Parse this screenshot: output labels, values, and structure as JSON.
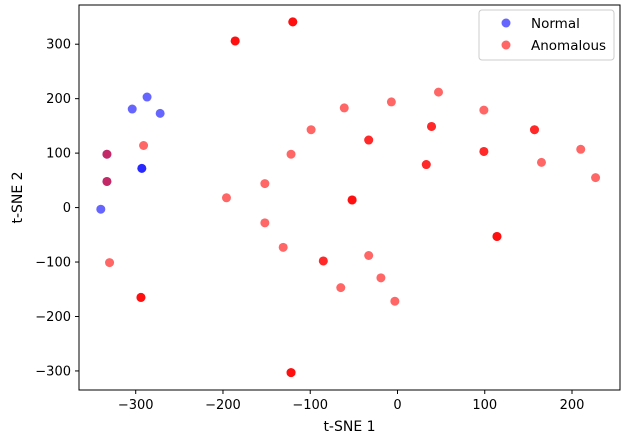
{
  "chart_data": {
    "type": "scatter",
    "xlabel": "t-SNE 1",
    "ylabel": "t-SNE 2",
    "xlim": [
      -365,
      255
    ],
    "ylim": [
      -335,
      372
    ],
    "xticks": [
      -300,
      -200,
      -100,
      0,
      100,
      200
    ],
    "yticks": [
      -300,
      -200,
      -100,
      0,
      100,
      200,
      300
    ],
    "xtick_labels": [
      "−300",
      "−200",
      "−100",
      "0",
      "100",
      "200"
    ],
    "ytick_labels": [
      "−300",
      "−200",
      "−100",
      "0",
      "100",
      "200",
      "300"
    ],
    "grid": false,
    "legend_position": "top-right",
    "series": [
      {
        "name": "Normal",
        "color": "#0000ff",
        "alpha": 0.6,
        "points": [
          [
            -340,
            -3
          ],
          [
            -333,
            48
          ],
          [
            -333,
            98
          ],
          [
            -304,
            181
          ],
          [
            -287,
            203
          ],
          [
            -272,
            173
          ],
          [
            -293,
            72
          ],
          [
            -293,
            72
          ]
        ]
      },
      {
        "name": "Anomalous",
        "color": "#ff0000",
        "alpha": 0.6,
        "points": [
          [
            -333,
            48
          ],
          [
            -333,
            98
          ],
          [
            -330,
            -101
          ],
          [
            -291,
            114
          ],
          [
            -294,
            -165
          ],
          [
            -294,
            -165
          ],
          [
            -294,
            -165
          ],
          [
            -186,
            306
          ],
          [
            -186,
            306
          ],
          [
            -186,
            306
          ],
          [
            -120,
            341
          ],
          [
            -120,
            341
          ],
          [
            -120,
            341
          ],
          [
            -122,
            -303
          ],
          [
            -122,
            -303
          ],
          [
            -122,
            -303
          ],
          [
            -196,
            18
          ],
          [
            -152,
            44
          ],
          [
            -152,
            -28
          ],
          [
            -131,
            -73
          ],
          [
            -122,
            98
          ],
          [
            -99,
            143
          ],
          [
            -85,
            -98
          ],
          [
            -85,
            -98
          ],
          [
            -65,
            -147
          ],
          [
            -61,
            183
          ],
          [
            -52,
            14
          ],
          [
            -52,
            14
          ],
          [
            -52,
            14
          ],
          [
            -33,
            124
          ],
          [
            -33,
            124
          ],
          [
            -33,
            -88
          ],
          [
            -19,
            -129
          ],
          [
            -7,
            194
          ],
          [
            -3,
            -172
          ],
          [
            33,
            79
          ],
          [
            33,
            79
          ],
          [
            39,
            149
          ],
          [
            39,
            149
          ],
          [
            47,
            212
          ],
          [
            99,
            103
          ],
          [
            99,
            103
          ],
          [
            99,
            179
          ],
          [
            114,
            -53
          ],
          [
            114,
            -53
          ],
          [
            114,
            -53
          ],
          [
            157,
            143
          ],
          [
            157,
            143
          ],
          [
            165,
            83
          ],
          [
            210,
            107
          ],
          [
            227,
            55
          ]
        ]
      }
    ]
  }
}
